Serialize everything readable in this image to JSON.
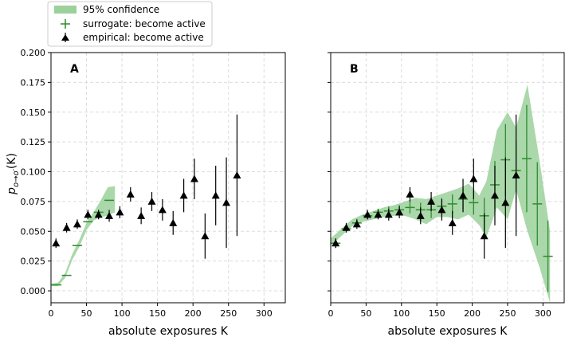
{
  "colors": {
    "band": "#9bd19b",
    "surrogate": "#2e8b2e",
    "empirical": "#000000",
    "grid": "#dcdcdc"
  },
  "legend": {
    "items": [
      {
        "key": "band",
        "label": "95% confidence"
      },
      {
        "key": "surrogate",
        "label": "surrogate: become active"
      },
      {
        "key": "empirical",
        "label": "empirical: become active"
      }
    ]
  },
  "ylabel_parts": {
    "p": "p",
    "sub": "o→o′",
    "rest": "(K)"
  },
  "chart_data": [
    {
      "panel": "A",
      "type": "scatter",
      "xlabel": "absolute exposures K",
      "ylabel": "p_{o→o'}(K)",
      "xlim": [
        0,
        330
      ],
      "ylim": [
        -0.01,
        0.2
      ],
      "xticks": [
        "0",
        "50",
        "100",
        "150",
        "200",
        "250",
        "300"
      ],
      "yticks": [
        "0.000",
        "0.025",
        "0.050",
        "0.075",
        "0.100",
        "0.125",
        "0.150",
        "0.175",
        "0.200"
      ],
      "band": [
        {
          "x": 0,
          "lo": 0.004,
          "hi": 0.006
        },
        {
          "x": 10,
          "lo": 0.004,
          "hi": 0.007
        },
        {
          "x": 20,
          "lo": 0.011,
          "hi": 0.015
        },
        {
          "x": 30,
          "lo": 0.026,
          "hi": 0.031
        },
        {
          "x": 40,
          "lo": 0.037,
          "hi": 0.043
        },
        {
          "x": 50,
          "lo": 0.051,
          "hi": 0.057
        },
        {
          "x": 60,
          "lo": 0.059,
          "hi": 0.066
        },
        {
          "x": 70,
          "lo": 0.062,
          "hi": 0.076
        },
        {
          "x": 80,
          "lo": 0.063,
          "hi": 0.087
        },
        {
          "x": 90,
          "lo": 0.066,
          "hi": 0.088
        }
      ],
      "surrogate": [
        {
          "x": 8,
          "y": 0.005
        },
        {
          "x": 22,
          "y": 0.013
        },
        {
          "x": 37,
          "y": 0.038
        },
        {
          "x": 52,
          "y": 0.058
        },
        {
          "x": 67,
          "y": 0.066
        },
        {
          "x": 82,
          "y": 0.076
        }
      ],
      "empirical": [
        {
          "x": 7,
          "y": 0.04,
          "err": 0.004
        },
        {
          "x": 22,
          "y": 0.053,
          "err": 0.004
        },
        {
          "x": 37,
          "y": 0.056,
          "err": 0.004
        },
        {
          "x": 52,
          "y": 0.064,
          "err": 0.004
        },
        {
          "x": 67,
          "y": 0.064,
          "err": 0.004
        },
        {
          "x": 82,
          "y": 0.063,
          "err": 0.005
        },
        {
          "x": 97,
          "y": 0.066,
          "err": 0.005
        },
        {
          "x": 112,
          "y": 0.081,
          "err": 0.006
        },
        {
          "x": 127,
          "y": 0.063,
          "err": 0.007
        },
        {
          "x": 142,
          "y": 0.075,
          "err": 0.008
        },
        {
          "x": 157,
          "y": 0.068,
          "err": 0.009
        },
        {
          "x": 172,
          "y": 0.057,
          "err": 0.01
        },
        {
          "x": 187,
          "y": 0.08,
          "err": 0.014
        },
        {
          "x": 202,
          "y": 0.094,
          "err": 0.017
        },
        {
          "x": 217,
          "y": 0.046,
          "err": 0.019
        },
        {
          "x": 232,
          "y": 0.08,
          "err": 0.025
        },
        {
          "x": 247,
          "y": 0.074,
          "err": 0.038
        },
        {
          "x": 262,
          "y": 0.097,
          "err": 0.051
        }
      ]
    },
    {
      "panel": "B",
      "type": "scatter",
      "xlabel": "absolute exposures K",
      "ylabel": "",
      "xlim": [
        0,
        330
      ],
      "ylim": [
        -0.01,
        0.2
      ],
      "xticks": [
        "0",
        "50",
        "100",
        "150",
        "200",
        "250",
        "300"
      ],
      "yticks": [],
      "band": [
        {
          "x": 0,
          "lo": 0.038,
          "hi": 0.044
        },
        {
          "x": 15,
          "lo": 0.046,
          "hi": 0.052
        },
        {
          "x": 30,
          "lo": 0.054,
          "hi": 0.06
        },
        {
          "x": 45,
          "lo": 0.058,
          "hi": 0.064
        },
        {
          "x": 60,
          "lo": 0.06,
          "hi": 0.067
        },
        {
          "x": 75,
          "lo": 0.062,
          "hi": 0.07
        },
        {
          "x": 90,
          "lo": 0.063,
          "hi": 0.072
        },
        {
          "x": 105,
          "lo": 0.063,
          "hi": 0.075
        },
        {
          "x": 120,
          "lo": 0.06,
          "hi": 0.078
        },
        {
          "x": 135,
          "lo": 0.056,
          "hi": 0.077
        },
        {
          "x": 150,
          "lo": 0.062,
          "hi": 0.08
        },
        {
          "x": 165,
          "lo": 0.062,
          "hi": 0.083
        },
        {
          "x": 180,
          "lo": 0.06,
          "hi": 0.086
        },
        {
          "x": 195,
          "lo": 0.064,
          "hi": 0.09
        },
        {
          "x": 210,
          "lo": 0.055,
          "hi": 0.08
        },
        {
          "x": 220,
          "lo": 0.045,
          "hi": 0.092
        },
        {
          "x": 235,
          "lo": 0.07,
          "hi": 0.135
        },
        {
          "x": 250,
          "lo": 0.06,
          "hi": 0.15
        },
        {
          "x": 262,
          "lo": 0.085,
          "hi": 0.137
        },
        {
          "x": 278,
          "lo": 0.05,
          "hi": 0.173
        },
        {
          "x": 295,
          "lo": 0.02,
          "hi": 0.11
        },
        {
          "x": 310,
          "lo": -0.01,
          "hi": 0.05
        }
      ],
      "surrogate": [
        {
          "x": 7,
          "y": 0.04,
          "err": 0.004
        },
        {
          "x": 22,
          "y": 0.052,
          "err": 0.003
        },
        {
          "x": 37,
          "y": 0.057,
          "err": 0.003
        },
        {
          "x": 52,
          "y": 0.063,
          "err": 0.003
        },
        {
          "x": 67,
          "y": 0.066,
          "err": 0.003
        },
        {
          "x": 82,
          "y": 0.067,
          "err": 0.004
        },
        {
          "x": 97,
          "y": 0.068,
          "err": 0.004
        },
        {
          "x": 112,
          "y": 0.07,
          "err": 0.005
        },
        {
          "x": 127,
          "y": 0.068,
          "err": 0.006
        },
        {
          "x": 142,
          "y": 0.068,
          "err": 0.007
        },
        {
          "x": 157,
          "y": 0.071,
          "err": 0.007
        },
        {
          "x": 172,
          "y": 0.073,
          "err": 0.008
        },
        {
          "x": 187,
          "y": 0.077,
          "err": 0.009
        },
        {
          "x": 202,
          "y": 0.074,
          "err": 0.01
        },
        {
          "x": 217,
          "y": 0.063,
          "err": 0.015
        },
        {
          "x": 232,
          "y": 0.089,
          "err": 0.02
        },
        {
          "x": 247,
          "y": 0.11,
          "err": 0.03
        },
        {
          "x": 262,
          "y": 0.101,
          "err": 0.025
        },
        {
          "x": 277,
          "y": 0.111,
          "err": 0.045
        },
        {
          "x": 292,
          "y": 0.073,
          "err": 0.035
        },
        {
          "x": 307,
          "y": 0.029,
          "err": 0.03
        }
      ],
      "empirical": [
        {
          "x": 7,
          "y": 0.04,
          "err": 0.004
        },
        {
          "x": 22,
          "y": 0.053,
          "err": 0.004
        },
        {
          "x": 37,
          "y": 0.056,
          "err": 0.004
        },
        {
          "x": 52,
          "y": 0.064,
          "err": 0.004
        },
        {
          "x": 67,
          "y": 0.064,
          "err": 0.004
        },
        {
          "x": 82,
          "y": 0.064,
          "err": 0.005
        },
        {
          "x": 97,
          "y": 0.066,
          "err": 0.005
        },
        {
          "x": 112,
          "y": 0.081,
          "err": 0.006
        },
        {
          "x": 127,
          "y": 0.063,
          "err": 0.007
        },
        {
          "x": 142,
          "y": 0.075,
          "err": 0.008
        },
        {
          "x": 157,
          "y": 0.068,
          "err": 0.009
        },
        {
          "x": 172,
          "y": 0.057,
          "err": 0.01
        },
        {
          "x": 187,
          "y": 0.08,
          "err": 0.014
        },
        {
          "x": 202,
          "y": 0.094,
          "err": 0.017
        },
        {
          "x": 217,
          "y": 0.046,
          "err": 0.019
        },
        {
          "x": 232,
          "y": 0.08,
          "err": 0.025
        },
        {
          "x": 247,
          "y": 0.074,
          "err": 0.038
        },
        {
          "x": 262,
          "y": 0.097,
          "err": 0.051
        }
      ]
    }
  ]
}
